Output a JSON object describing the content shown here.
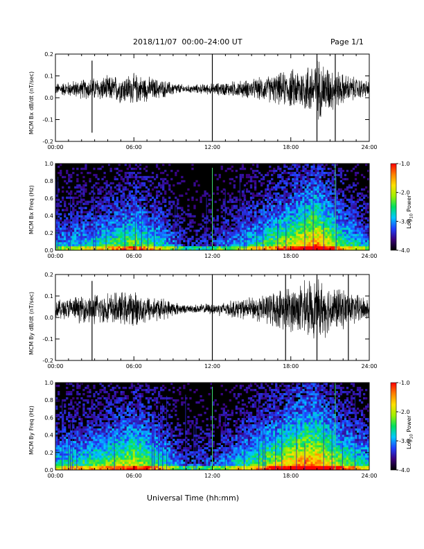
{
  "header": {
    "title": "2018/11/07  00:00–24:00 UT",
    "page": "Page 1/1"
  },
  "xlabel_main": "Universal Time (hh:mm)",
  "colorbar": {
    "label_prefix": "Log",
    "label_sub": "10",
    "label_suffix": " Power",
    "ticks": [
      "-1.0",
      "-2.0",
      "-3.0",
      "-4.0"
    ],
    "range": [
      -4.0,
      -1.0
    ],
    "colors": [
      "#000000",
      "#3a007a",
      "#2040ff",
      "#00c8ff",
      "#00e060",
      "#a0f000",
      "#ffe000",
      "#ff8000",
      "#ff0000"
    ]
  },
  "chart_data": [
    {
      "type": "line",
      "ylabel": "MCM Bx dB/dt (nT/sec)",
      "xlim": [
        0,
        24
      ],
      "ylim": [
        -0.2,
        0.2
      ],
      "xticks": [
        "00:00",
        "06:00",
        "12:00",
        "18:00",
        "24:00"
      ],
      "yticks": [
        "0.2",
        "0.1",
        "0.0",
        "-0.1",
        "-0.2"
      ],
      "baseline": 0.04,
      "amplitude_profile": [
        [
          0,
          0.03
        ],
        [
          2,
          0.05
        ],
        [
          3,
          0.06
        ],
        [
          6,
          0.08
        ],
        [
          8,
          0.05
        ],
        [
          10,
          0.02
        ],
        [
          12,
          0.03
        ],
        [
          15,
          0.05
        ],
        [
          17,
          0.08
        ],
        [
          19,
          0.12
        ],
        [
          20,
          0.16
        ],
        [
          22,
          0.08
        ],
        [
          24,
          0.04
        ]
      ],
      "spikes": [
        [
          2.8,
          0.17,
          -0.16
        ],
        [
          12.0,
          0.2,
          -0.2
        ],
        [
          20.0,
          0.2,
          -0.2
        ],
        [
          21.4,
          0.2,
          -0.2
        ]
      ]
    },
    {
      "type": "heatmap",
      "ylabel": "MCM Bx Freq (Hz)",
      "xlim": [
        0,
        24
      ],
      "ylim": [
        0.0,
        1.0
      ],
      "xticks": [
        "00:00",
        "06:00",
        "12:00",
        "18:00",
        "24:00"
      ],
      "yticks": [
        "1.0",
        "0.8",
        "0.6",
        "0.4",
        "0.2",
        "0.0"
      ],
      "activity_profile": [
        [
          0,
          0.4
        ],
        [
          3,
          0.5
        ],
        [
          6,
          0.7
        ],
        [
          8,
          0.5
        ],
        [
          10,
          0.2
        ],
        [
          12,
          0.25
        ],
        [
          15,
          0.5
        ],
        [
          17,
          0.7
        ],
        [
          19,
          0.9
        ],
        [
          20,
          1.0
        ],
        [
          22,
          0.6
        ],
        [
          24,
          0.4
        ]
      ],
      "vertical_lines": [
        12.0,
        21.4
      ]
    },
    {
      "type": "line",
      "ylabel": "MCM By dB/dt (nT/sec)",
      "xlim": [
        0,
        24
      ],
      "ylim": [
        -0.2,
        0.2
      ],
      "xticks": [
        "00:00",
        "06:00",
        "12:00",
        "18:00",
        "24:00"
      ],
      "yticks": [
        "0.2",
        "0.1",
        "0.0",
        "-0.1",
        "-0.2"
      ],
      "baseline": 0.04,
      "amplitude_profile": [
        [
          0,
          0.05
        ],
        [
          2,
          0.07
        ],
        [
          3,
          0.08
        ],
        [
          6,
          0.09
        ],
        [
          8,
          0.06
        ],
        [
          10,
          0.02
        ],
        [
          12,
          0.03
        ],
        [
          15,
          0.06
        ],
        [
          17,
          0.1
        ],
        [
          19,
          0.14
        ],
        [
          20,
          0.16
        ],
        [
          22,
          0.1
        ],
        [
          24,
          0.06
        ]
      ],
      "spikes": [
        [
          2.8,
          0.17,
          -0.2
        ],
        [
          12.0,
          0.2,
          -0.2
        ],
        [
          17.6,
          0.2,
          -0.2
        ],
        [
          20.0,
          0.2,
          -0.2
        ],
        [
          22.4,
          0.2,
          -0.2
        ]
      ]
    },
    {
      "type": "heatmap",
      "ylabel": "MCM By Freq (Hz)",
      "xlim": [
        0,
        24
      ],
      "ylim": [
        0.0,
        1.0
      ],
      "xticks": [
        "00:00",
        "06:00",
        "12:00",
        "18:00",
        "24:00"
      ],
      "yticks": [
        "1.0",
        "0.8",
        "0.6",
        "0.4",
        "0.2",
        "0.0"
      ],
      "activity_profile": [
        [
          0,
          0.5
        ],
        [
          3,
          0.6
        ],
        [
          6,
          0.8
        ],
        [
          8,
          0.6
        ],
        [
          10,
          0.25
        ],
        [
          12,
          0.3
        ],
        [
          15,
          0.6
        ],
        [
          17,
          0.8
        ],
        [
          19,
          1.0
        ],
        [
          20,
          1.0
        ],
        [
          22,
          0.7
        ],
        [
          24,
          0.5
        ]
      ],
      "vertical_lines": [
        12.0,
        21.4
      ]
    }
  ]
}
